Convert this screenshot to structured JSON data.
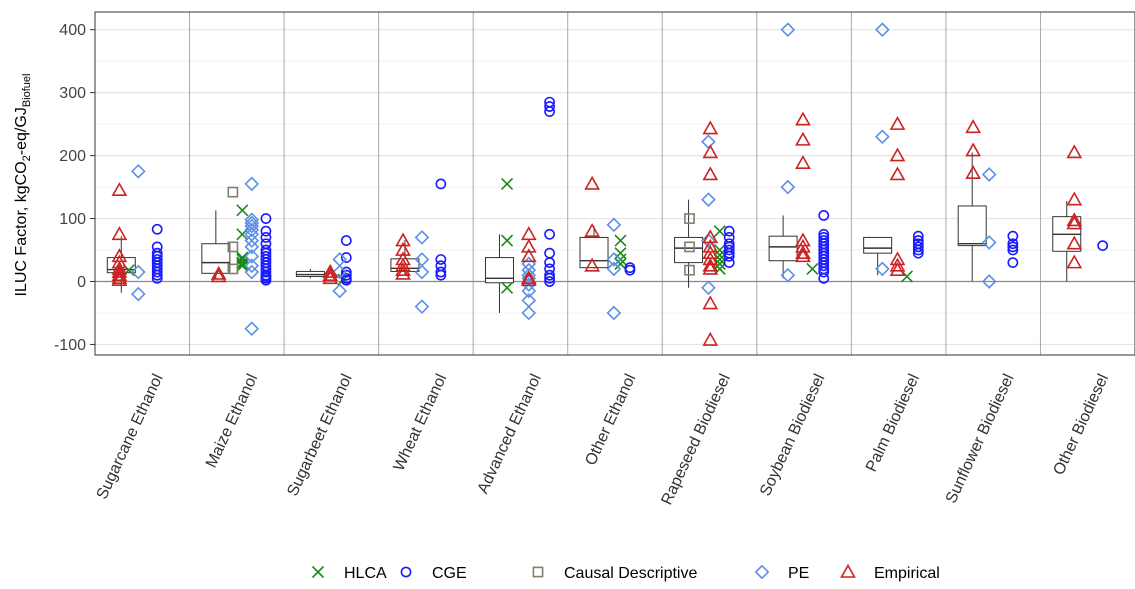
{
  "chart_data": {
    "type": "box-and-scatter",
    "ylabel": {
      "main": "ILUC Factor, kgCO",
      "sub1": "2",
      "mid": "-eq/GJ",
      "sub2": "Biofuel"
    },
    "ylim": [
      -120,
      425
    ],
    "yticks": [
      -100,
      0,
      100,
      200,
      300,
      400
    ],
    "grid": true,
    "legend_position": "bottom",
    "categories": [
      "Sugarcane Ethanol",
      "Maize Ethanol",
      "Sugarbeet Ethanol",
      "Wheat Ethanol",
      "Advanced Ethanol",
      "Other Ethanol",
      "Rapeseed Biodiesel",
      "Soybean Biodiesel",
      "Palm Biodiesel",
      "Sunflower Biodiesel",
      "Other Biodiesel"
    ],
    "boxes": [
      {
        "category": "Sugarcane Ethanol",
        "whisker_low": -18,
        "q1": 14,
        "median": 19,
        "q3": 38,
        "whisker_high": 72
      },
      {
        "category": "Maize Ethanol",
        "whisker_low": 3,
        "q1": 13,
        "median": 30,
        "q3": 60,
        "whisker_high": 113
      },
      {
        "category": "Sugarbeet Ethanol",
        "whisker_low": 5,
        "q1": 8,
        "median": 11,
        "q3": 16,
        "whisker_high": 20
      },
      {
        "category": "Wheat Ethanol",
        "whisker_low": 10,
        "q1": 16,
        "median": 21,
        "q3": 36,
        "whisker_high": 66
      },
      {
        "category": "Advanced Ethanol",
        "whisker_low": -50,
        "q1": -2,
        "median": 5,
        "q3": 38,
        "whisker_high": 75
      },
      {
        "category": "Other Ethanol",
        "whisker_low": 20,
        "q1": 22,
        "median": 33,
        "q3": 70,
        "whisker_high": 88
      },
      {
        "category": "Rapeseed Biodiesel",
        "whisker_low": -10,
        "q1": 30,
        "median": 53,
        "q3": 70,
        "whisker_high": 130
      },
      {
        "category": "Soybean Biodiesel",
        "whisker_low": 5,
        "q1": 33,
        "median": 55,
        "q3": 72,
        "whisker_high": 105
      },
      {
        "category": "Palm Biodiesel",
        "whisker_low": 10,
        "q1": 45,
        "median": 53,
        "q3": 70,
        "whisker_high": 70
      },
      {
        "category": "Sunflower Biodiesel",
        "whisker_low": 0,
        "q1": 57,
        "median": 60,
        "q3": 120,
        "whisker_high": 205
      },
      {
        "category": "Other Biodiesel",
        "whisker_low": 0,
        "q1": 48,
        "median": 75,
        "q3": 103,
        "whisker_high": 128
      }
    ],
    "series": [
      {
        "name": "HLCA",
        "marker": "cross",
        "color": "#1a8a1a",
        "points": [
          {
            "category": "Sugarcane Ethanol",
            "offset": 0.15,
            "values": [
              18
            ]
          },
          {
            "category": "Maize Ethanol",
            "offset": 0.35,
            "values": [
              113,
              75,
              38,
              35,
              30,
              28,
              25
            ]
          },
          {
            "category": "Sugarbeet Ethanol",
            "offset": 0.42,
            "values": [
              3
            ]
          },
          {
            "category": "Advanced Ethanol",
            "offset": 0.15,
            "values": [
              155,
              65,
              -10
            ]
          },
          {
            "category": "Other Ethanol",
            "offset": 0.35,
            "values": [
              65,
              45,
              35,
              28
            ]
          },
          {
            "category": "Rapeseed Biodiesel",
            "offset": 0.4,
            "values": [
              80,
              50,
              42,
              35,
              28,
              20
            ]
          },
          {
            "category": "Soybean Biodiesel",
            "offset": 0.38,
            "values": [
              20
            ]
          },
          {
            "category": "Palm Biodiesel",
            "offset": 0.38,
            "values": [
              8
            ]
          }
        ]
      },
      {
        "name": "CGE",
        "marker": "circle",
        "color": "#1a1aff",
        "points": [
          {
            "category": "Sugarcane Ethanol",
            "offset": 0.45,
            "values": [
              83,
              55,
              45,
              40,
              35,
              30,
              25,
              20,
              15,
              10,
              5
            ]
          },
          {
            "category": "Maize Ethanol",
            "offset": 0.6,
            "values": [
              100,
              80,
              70,
              60,
              50,
              45,
              40,
              35,
              30,
              25,
              20,
              15,
              10,
              8,
              5,
              2
            ]
          },
          {
            "category": "Sugarbeet Ethanol",
            "offset": 0.45,
            "values": [
              65,
              38,
              15,
              10,
              5,
              2
            ]
          },
          {
            "category": "Wheat Ethanol",
            "offset": 0.45,
            "values": [
              155,
              35,
              25,
              15,
              10
            ]
          },
          {
            "category": "Advanced Ethanol",
            "offset": 0.6,
            "values": [
              285,
              278,
              270,
              75,
              45,
              30,
              20,
              10,
              5,
              0
            ]
          },
          {
            "category": "Other Ethanol",
            "offset": 0.45,
            "values": [
              22,
              18
            ]
          },
          {
            "category": "Rapeseed Biodiesel",
            "offset": 0.5,
            "values": [
              80,
              70,
              60,
              55,
              50,
              45,
              40,
              30
            ]
          },
          {
            "category": "Soybean Biodiesel",
            "offset": 0.5,
            "values": [
              105,
              75,
              70,
              65,
              60,
              55,
              50,
              45,
              40,
              35,
              30,
              25,
              20,
              15,
              5
            ]
          },
          {
            "category": "Palm Biodiesel",
            "offset": 0.5,
            "values": [
              72,
              65,
              60,
              55,
              50,
              45
            ]
          },
          {
            "category": "Sunflower Biodiesel",
            "offset": 0.5,
            "values": [
              72,
              60,
              55,
              50,
              30
            ]
          },
          {
            "category": "Other Biodiesel",
            "offset": 0.45,
            "values": [
              57
            ]
          }
        ]
      },
      {
        "name": "Causal Descriptive",
        "marker": "square",
        "color": "#808070",
        "points": [
          {
            "category": "Maize Ethanol",
            "offset": 0.25,
            "values": [
              142,
              55,
              20
            ]
          },
          {
            "category": "Rapeseed Biodiesel",
            "offset": 0.08,
            "values": [
              100,
              55,
              18
            ]
          }
        ]
      },
      {
        "name": "PE",
        "marker": "diamond",
        "color": "#5b8fe6",
        "points": [
          {
            "category": "Sugarcane Ethanol",
            "offset": 0.25,
            "values": [
              175,
              15,
              -20
            ]
          },
          {
            "category": "Maize Ethanol",
            "offset": 0.45,
            "values": [
              155,
              98,
              93,
              88,
              82,
              75,
              65,
              55,
              40,
              25,
              15,
              -75
            ]
          },
          {
            "category": "Sugarbeet Ethanol",
            "offset": 0.38,
            "values": [
              35,
              15,
              -15
            ]
          },
          {
            "category": "Wheat Ethanol",
            "offset": 0.25,
            "values": [
              70,
              35,
              15,
              -40
            ]
          },
          {
            "category": "Advanced Ethanol",
            "offset": 0.38,
            "values": [
              28,
              18,
              10,
              5,
              -5,
              -15,
              -30,
              -50
            ]
          },
          {
            "category": "Other Ethanol",
            "offset": 0.28,
            "values": [
              90,
              35,
              20,
              -50
            ]
          },
          {
            "category": "Rapeseed Biodiesel",
            "offset": 0.28,
            "values": [
              222,
              130,
              65,
              -10
            ]
          },
          {
            "category": "Soybean Biodiesel",
            "offset": 0.12,
            "values": [
              400,
              150,
              10
            ]
          },
          {
            "category": "Palm Biodiesel",
            "offset": 0.12,
            "values": [
              400,
              230,
              20
            ]
          },
          {
            "category": "Sunflower Biodiesel",
            "offset": 0.25,
            "values": [
              170,
              62,
              0
            ]
          }
        ]
      },
      {
        "name": "Empirical",
        "marker": "triangle",
        "color": "#cc2222",
        "points": [
          {
            "category": "Sugarcane Ethanol",
            "offset": 0.05,
            "values": [
              145,
              75,
              40,
              30,
              20,
              15,
              10,
              5,
              2
            ]
          },
          {
            "category": "Maize Ethanol",
            "offset": 0.1,
            "values": [
              12,
              8
            ]
          },
          {
            "category": "Sugarbeet Ethanol",
            "offset": 0.28,
            "values": [
              15,
              10,
              5
            ]
          },
          {
            "category": "Wheat Ethanol",
            "offset": 0.05,
            "values": [
              65,
              50,
              35,
              25,
              18,
              12
            ]
          },
          {
            "category": "Advanced Ethanol",
            "offset": 0.38,
            "values": [
              75,
              55,
              40,
              5,
              2
            ]
          },
          {
            "category": "Other Ethanol",
            "offset": 0.05,
            "values": [
              155,
              80,
              25
            ]
          },
          {
            "category": "Rapeseed Biodiesel",
            "offset": 0.3,
            "values": [
              243,
              205,
              170,
              70,
              55,
              45,
              35,
              25,
              20,
              -35,
              -93
            ]
          },
          {
            "category": "Soybean Biodiesel",
            "offset": 0.28,
            "values": [
              257,
              225,
              188,
              65,
              55,
              45,
              40
            ]
          },
          {
            "category": "Palm Biodiesel",
            "offset": 0.28,
            "values": [
              250,
              200,
              170,
              35,
              25,
              18
            ]
          },
          {
            "category": "Sunflower Biodiesel",
            "offset": 0.08,
            "values": [
              245,
              208,
              172
            ]
          },
          {
            "category": "Other Biodiesel",
            "offset": 0.15,
            "values": [
              205,
              130,
              97,
              92,
              60,
              30
            ]
          }
        ]
      }
    ],
    "legend": [
      {
        "name": "HLCA",
        "marker": "cross",
        "color": "#1a8a1a"
      },
      {
        "name": "CGE",
        "marker": "circle",
        "color": "#1a1aff"
      },
      {
        "name": "Causal Descriptive",
        "marker": "square",
        "color": "#808070"
      },
      {
        "name": "PE",
        "marker": "diamond",
        "color": "#5b8fe6"
      },
      {
        "name": "Empirical",
        "marker": "triangle",
        "color": "#cc2222"
      }
    ]
  }
}
